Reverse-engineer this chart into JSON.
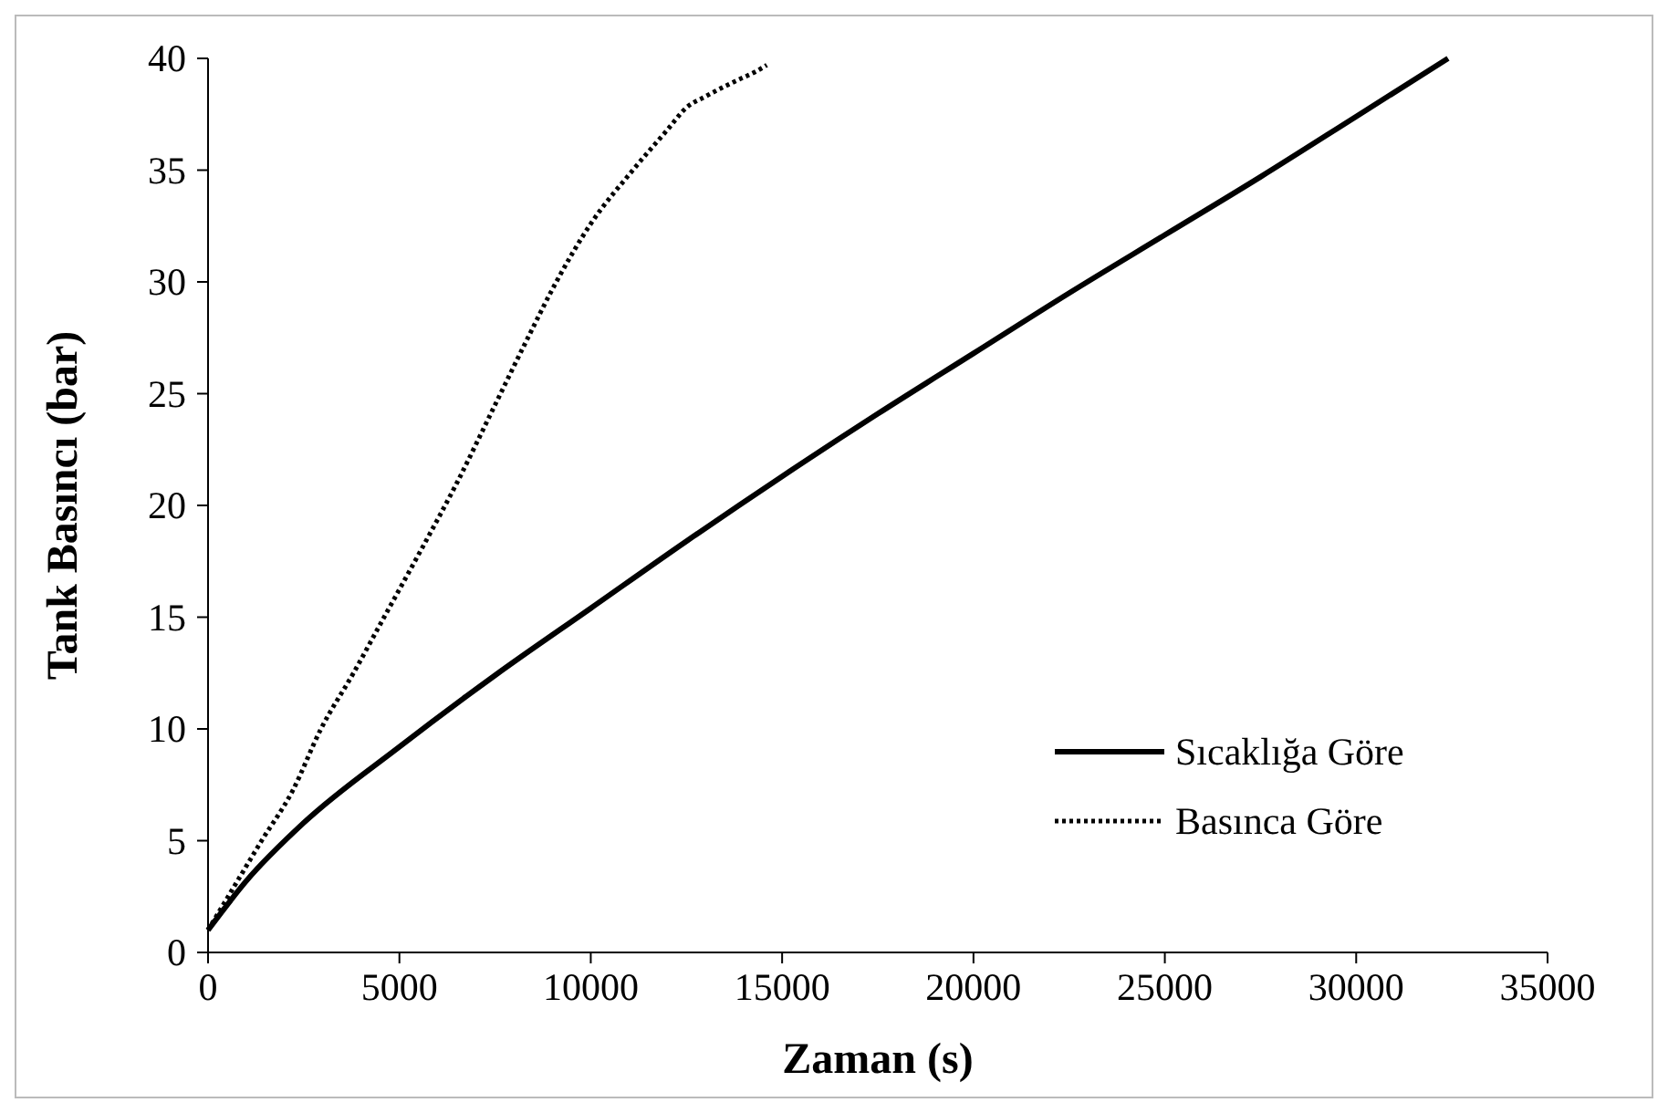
{
  "chart_data": {
    "type": "line",
    "xlabel": "Zaman (s)",
    "ylabel": "Tank Basıncı (bar)",
    "xlim": [
      0,
      35000
    ],
    "ylim": [
      0,
      40
    ],
    "xticks": [
      0,
      5000,
      10000,
      15000,
      20000,
      25000,
      30000,
      35000
    ],
    "yticks": [
      0,
      5,
      10,
      15,
      20,
      25,
      30,
      35,
      40
    ],
    "grid": false,
    "legend": "bottom right",
    "marker": "none",
    "series": [
      {
        "name": "Sıcaklığa Göre",
        "color": "#000000",
        "line_style": "solid",
        "x": [
          0,
          1000,
          2500,
          5000,
          7500,
          10000,
          12500,
          15000,
          17500,
          20000,
          22500,
          25000,
          27500,
          30000,
          32400
        ],
        "values": [
          1,
          3.2,
          5.8,
          9.2,
          12.4,
          15.4,
          18.4,
          21.3,
          24.1,
          26.8,
          29.5,
          32.1,
          34.7,
          37.4,
          40
        ]
      },
      {
        "name": "Basınca Göre",
        "color": "#000000",
        "line_style": "dotted",
        "x": [
          0,
          700,
          1400,
          2200,
          2950,
          3800,
          4600,
          5500,
          6500,
          7500,
          8300,
          9100,
          10000,
          11100,
          12000,
          12500,
          13000,
          13800,
          14300,
          14600
        ],
        "values": [
          1,
          3,
          5,
          7.2,
          10,
          12.5,
          15,
          17.8,
          21,
          24.5,
          27.3,
          30,
          32.6,
          35,
          36.8,
          37.8,
          38.3,
          39,
          39.4,
          39.7
        ]
      }
    ]
  }
}
